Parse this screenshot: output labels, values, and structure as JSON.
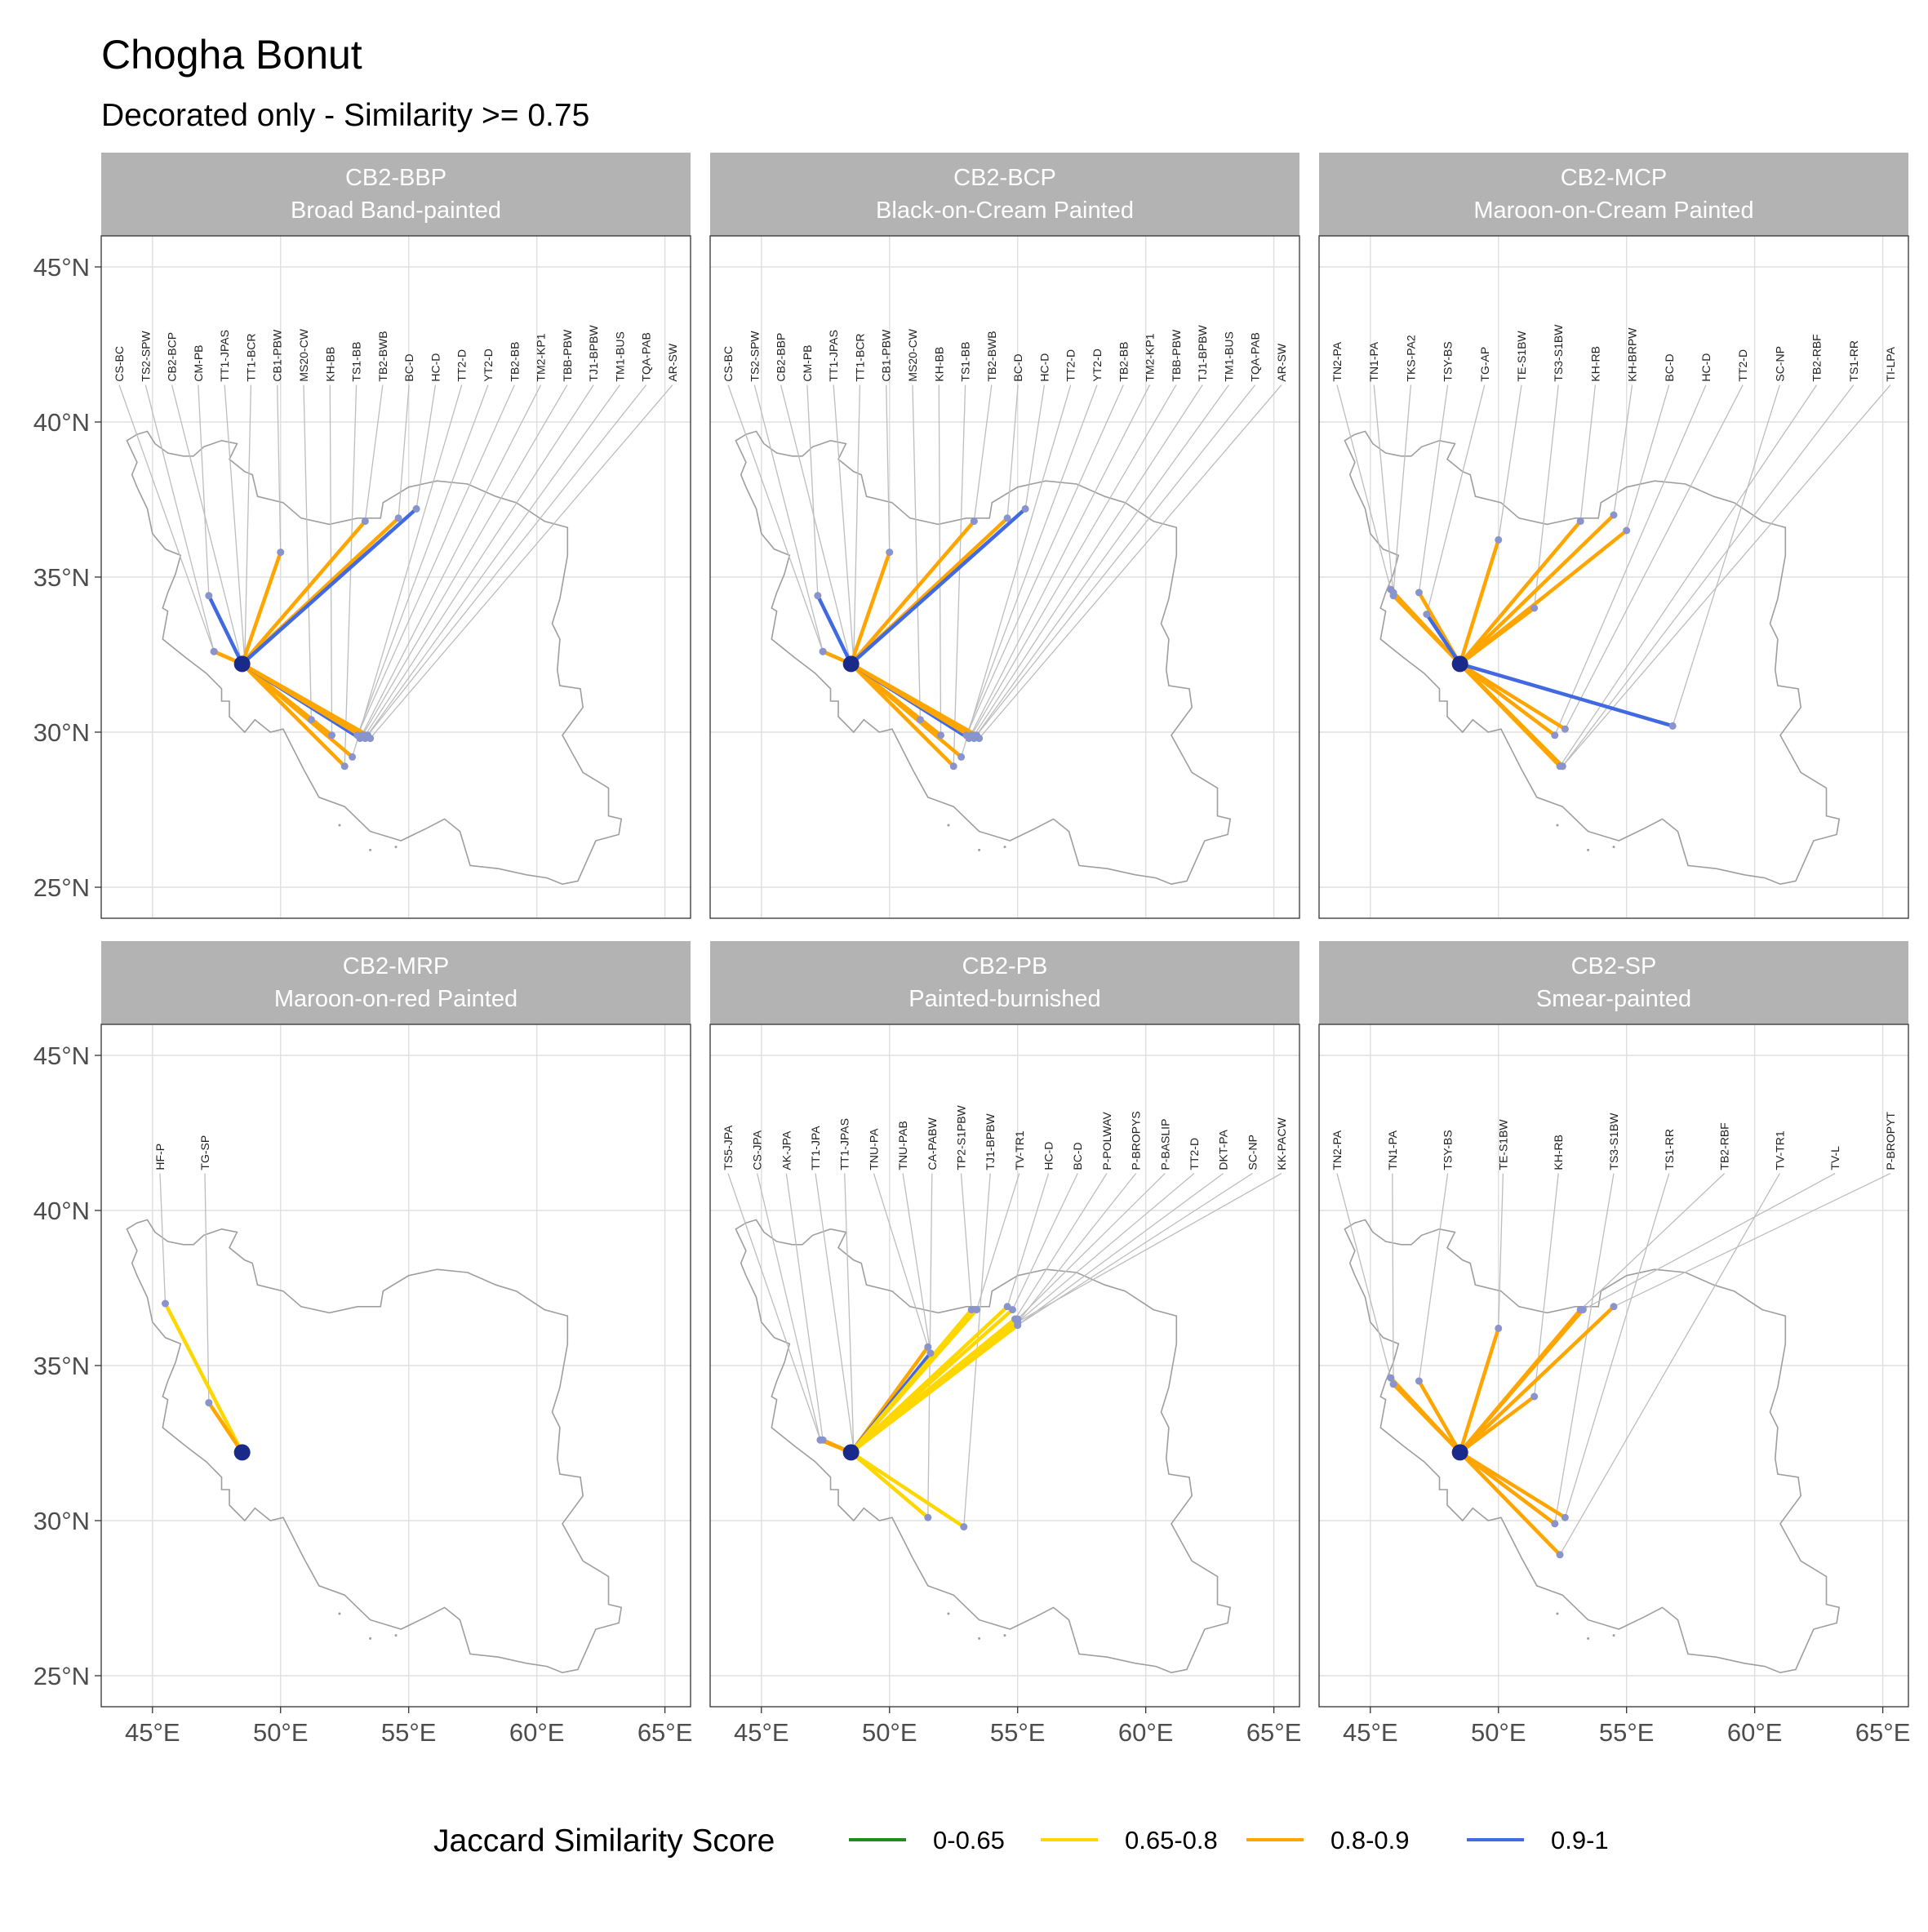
{
  "title": "Chogha Bonut",
  "subtitle": "Decorated only - Similarity >= 0.75",
  "legend": {
    "title": "Jaccard Similarity Score",
    "items": [
      {
        "label": "0-0.65",
        "color": "#228B22"
      },
      {
        "label": "0.65-0.8",
        "color": "#FFD700"
      },
      {
        "label": "0.8-0.9",
        "color": "#FFA500"
      },
      {
        "label": "0.9-1",
        "color": "#4169E1"
      }
    ]
  },
  "chart_data": {
    "type": "map",
    "panel_layout": "2 rows x 3 columns",
    "xlim": [
      43,
      66
    ],
    "ylim": [
      24,
      46
    ],
    "x_ticks": [
      45,
      50,
      55,
      60,
      65
    ],
    "x_tick_labels": [
      "45°E",
      "50°E",
      "55°E",
      "60°E",
      "65°E"
    ],
    "y_ticks": [
      25,
      30,
      35,
      40,
      45
    ],
    "y_tick_labels": [
      "25°N",
      "30°N",
      "35°N",
      "40°N",
      "45°N"
    ],
    "grid": true,
    "legend_position": "bottom",
    "origin": {
      "lon": 48.5,
      "lat": 32.2
    },
    "colors": {
      "panel_strip": "#B3B3B3",
      "strip_text": "#FFFFFF",
      "grid": "#E0E0E0",
      "border": "#333333",
      "outline": "#9E9E9E",
      "leader": "#BDBDBD",
      "site_point": "#8A94CC",
      "origin_point": "#1A2A8A",
      "axis_text": "#4D4D4D"
    },
    "panels": [
      {
        "strip": [
          "CB2-BBP",
          "Broad Band-painted"
        ],
        "sites": [
          {
            "label": "CS-BC",
            "lon": 47.4,
            "lat": 32.6,
            "band": "0.8-0.9"
          },
          {
            "label": "TS2-SPW",
            "lon": 47.4,
            "lat": 32.6,
            "band": "0.8-0.9"
          },
          {
            "label": "CB2-BCP",
            "lon": 48.5,
            "lat": 32.2,
            "band": "0.8-0.9"
          },
          {
            "label": "CM-PB",
            "lon": 47.2,
            "lat": 34.4,
            "band": "0.9-1"
          },
          {
            "label": "TT1-JPAS",
            "lon": 48.6,
            "lat": 32.3,
            "band": "0.8-0.9"
          },
          {
            "label": "TT1-BCR",
            "lon": 48.6,
            "lat": 32.3,
            "band": "0.8-0.9"
          },
          {
            "label": "CB1-PBW",
            "lon": 50.0,
            "lat": 35.8,
            "band": "0.8-0.9"
          },
          {
            "label": "MS20-CW",
            "lon": 51.2,
            "lat": 30.4,
            "band": "0.8-0.9"
          },
          {
            "label": "KH-BB",
            "lon": 52.0,
            "lat": 29.9,
            "band": "0.8-0.9"
          },
          {
            "label": "TS1-BB",
            "lon": 52.5,
            "lat": 28.9,
            "band": "0.8-0.9"
          },
          {
            "label": "TB2-BWB",
            "lon": 53.3,
            "lat": 36.8,
            "band": "0.8-0.9"
          },
          {
            "label": "BC-D",
            "lon": 54.6,
            "lat": 36.9,
            "band": "0.8-0.9"
          },
          {
            "label": "HC-D",
            "lon": 55.3,
            "lat": 37.2,
            "band": "0.9-1"
          },
          {
            "label": "TT2-D",
            "lon": 52.8,
            "lat": 29.2,
            "band": "0.8-0.9"
          },
          {
            "label": "YT2-D",
            "lon": 53.0,
            "lat": 29.9,
            "band": "0.9-1"
          },
          {
            "label": "TB2-BB",
            "lon": 53.0,
            "lat": 29.9,
            "band": "0.8-0.9"
          },
          {
            "label": "TM2-KP1",
            "lon": 53.1,
            "lat": 29.8,
            "band": "0.9-1"
          },
          {
            "label": "TBB-PBW",
            "lon": 53.2,
            "lat": 29.9,
            "band": "0.8-0.9"
          },
          {
            "label": "TJ1-BPBW",
            "lon": 53.3,
            "lat": 29.9,
            "band": "0.8-0.9"
          },
          {
            "label": "TM1-BUS",
            "lon": 53.3,
            "lat": 29.8,
            "band": "0.8-0.9"
          },
          {
            "label": "TQA-PAB",
            "lon": 53.4,
            "lat": 29.9,
            "band": "0.8-0.9"
          },
          {
            "label": "AR-SW",
            "lon": 53.5,
            "lat": 29.8,
            "band": "0.8-0.9"
          }
        ]
      },
      {
        "strip": [
          "CB2-BCP",
          "Black-on-Cream Painted"
        ],
        "sites": [
          {
            "label": "CS-BC",
            "lon": 47.4,
            "lat": 32.6,
            "band": "0.8-0.9"
          },
          {
            "label": "TS2-SPW",
            "lon": 47.4,
            "lat": 32.6,
            "band": "0.8-0.9"
          },
          {
            "label": "CB2-BBP",
            "lon": 48.5,
            "lat": 32.2,
            "band": "0.8-0.9"
          },
          {
            "label": "CM-PB",
            "lon": 47.2,
            "lat": 34.4,
            "band": "0.9-1"
          },
          {
            "label": "TT1-JPAS",
            "lon": 48.6,
            "lat": 32.3,
            "band": "0.8-0.9"
          },
          {
            "label": "TT1-BCR",
            "lon": 48.6,
            "lat": 32.3,
            "band": "0.8-0.9"
          },
          {
            "label": "CB1-PBW",
            "lon": 50.0,
            "lat": 35.8,
            "band": "0.8-0.9"
          },
          {
            "label": "MS20-CW",
            "lon": 51.2,
            "lat": 30.4,
            "band": "0.8-0.9"
          },
          {
            "label": "KH-BB",
            "lon": 52.0,
            "lat": 29.9,
            "band": "0.8-0.9"
          },
          {
            "label": "TS1-BB",
            "lon": 52.5,
            "lat": 28.9,
            "band": "0.8-0.9"
          },
          {
            "label": "TB2-BWB",
            "lon": 53.3,
            "lat": 36.8,
            "band": "0.8-0.9"
          },
          {
            "label": "BC-D",
            "lon": 54.6,
            "lat": 36.9,
            "band": "0.8-0.9"
          },
          {
            "label": "HC-D",
            "lon": 55.3,
            "lat": 37.2,
            "band": "0.9-1"
          },
          {
            "label": "TT2-D",
            "lon": 52.8,
            "lat": 29.2,
            "band": "0.8-0.9"
          },
          {
            "label": "YT2-D",
            "lon": 53.0,
            "lat": 29.9,
            "band": "0.9-1"
          },
          {
            "label": "TB2-BB",
            "lon": 53.0,
            "lat": 29.9,
            "band": "0.8-0.9"
          },
          {
            "label": "TM2-KP1",
            "lon": 53.1,
            "lat": 29.8,
            "band": "0.9-1"
          },
          {
            "label": "TBB-PBW",
            "lon": 53.2,
            "lat": 29.9,
            "band": "0.8-0.9"
          },
          {
            "label": "TJ1-BPBW",
            "lon": 53.3,
            "lat": 29.9,
            "band": "0.8-0.9"
          },
          {
            "label": "TM1-BUS",
            "lon": 53.3,
            "lat": 29.8,
            "band": "0.8-0.9"
          },
          {
            "label": "TQA-PAB",
            "lon": 53.4,
            "lat": 29.9,
            "band": "0.8-0.9"
          },
          {
            "label": "AR-SW",
            "lon": 53.5,
            "lat": 29.8,
            "band": "0.8-0.9"
          }
        ]
      },
      {
        "strip": [
          "CB2-MCP",
          "Maroon-on-Cream Painted"
        ],
        "sites": [
          {
            "label": "TN2-PA",
            "lon": 45.8,
            "lat": 34.6,
            "band": "0.8-0.9"
          },
          {
            "label": "TN1-PA",
            "lon": 45.9,
            "lat": 34.4,
            "band": "0.8-0.9"
          },
          {
            "label": "TKS-PA2",
            "lon": 45.9,
            "lat": 34.5,
            "band": "0.8-0.9"
          },
          {
            "label": "TSY-BS",
            "lon": 46.9,
            "lat": 34.5,
            "band": "0.8-0.9"
          },
          {
            "label": "TG-AP",
            "lon": 47.2,
            "lat": 33.8,
            "band": "0.9-1"
          },
          {
            "label": "TE-S1BW",
            "lon": 50.0,
            "lat": 36.2,
            "band": "0.8-0.9"
          },
          {
            "label": "TS3-S1BW",
            "lon": 51.4,
            "lat": 34.0,
            "band": "0.8-0.9"
          },
          {
            "label": "KH-RB",
            "lon": 53.2,
            "lat": 36.8,
            "band": "0.8-0.9"
          },
          {
            "label": "KH-BRPW",
            "lon": 54.5,
            "lat": 37.0,
            "band": "0.8-0.9"
          },
          {
            "label": "BC-D",
            "lon": 55.0,
            "lat": 36.5,
            "band": "0.8-0.9"
          },
          {
            "label": "HC-D",
            "lon": 52.2,
            "lat": 29.9,
            "band": "0.8-0.9"
          },
          {
            "label": "TT2-D",
            "lon": 52.6,
            "lat": 30.1,
            "band": "0.8-0.9"
          },
          {
            "label": "SC-NP",
            "lon": 56.8,
            "lat": 30.2,
            "band": "0.9-1"
          },
          {
            "label": "TB2-RBF",
            "lon": 52.4,
            "lat": 28.9,
            "band": "0.8-0.9"
          },
          {
            "label": "TS1-RR",
            "lon": 52.5,
            "lat": 28.9,
            "band": "0.8-0.9"
          },
          {
            "label": "TI-LPA",
            "lon": 52.5,
            "lat": 28.9,
            "band": "0.8-0.9"
          }
        ]
      },
      {
        "strip": [
          "CB2-MRP",
          "Maroon-on-red Painted"
        ],
        "sites": [
          {
            "label": "HF-P",
            "lon": 45.5,
            "lat": 37.0,
            "band": "0.65-0.8"
          },
          {
            "label": "TG-SP",
            "lon": 47.2,
            "lat": 33.8,
            "band": "0.8-0.9"
          }
        ]
      },
      {
        "strip": [
          "CB2-PB",
          "Painted-burnished"
        ],
        "sites": [
          {
            "label": "TS5-JPA",
            "lon": 47.3,
            "lat": 32.6,
            "band": "0.8-0.9"
          },
          {
            "label": "CS-JPA",
            "lon": 47.3,
            "lat": 32.6,
            "band": "0.8-0.9"
          },
          {
            "label": "AK-JPA",
            "lon": 47.4,
            "lat": 32.6,
            "band": "0.8-0.9"
          },
          {
            "label": "TT1-JPA",
            "lon": 48.6,
            "lat": 32.3,
            "band": "0.8-0.9"
          },
          {
            "label": "TT1-JPAS",
            "lon": 48.6,
            "lat": 32.3,
            "band": "0.8-0.9"
          },
          {
            "label": "TNU-PA",
            "lon": 51.5,
            "lat": 35.6,
            "band": "0.8-0.9"
          },
          {
            "label": "TNU-PAB",
            "lon": 51.6,
            "lat": 35.4,
            "band": "0.9-1"
          },
          {
            "label": "CA-PABW",
            "lon": 51.5,
            "lat": 30.1,
            "band": "0.65-0.8"
          },
          {
            "label": "TP2-S1PBW",
            "lon": 53.2,
            "lat": 36.8,
            "band": "0.65-0.8"
          },
          {
            "label": "TJ1-BPBW",
            "lon": 52.9,
            "lat": 29.8,
            "band": "0.65-0.8"
          },
          {
            "label": "TV-TR1",
            "lon": 53.4,
            "lat": 36.8,
            "band": "0.65-0.8"
          },
          {
            "label": "HC-D",
            "lon": 54.6,
            "lat": 36.9,
            "band": "0.65-0.8"
          },
          {
            "label": "BC-D",
            "lon": 54.8,
            "lat": 36.8,
            "band": "0.65-0.8"
          },
          {
            "label": "P-POLWAV",
            "lon": 54.9,
            "lat": 36.5,
            "band": "0.65-0.8"
          },
          {
            "label": "P-BROPYS",
            "lon": 55.0,
            "lat": 36.4,
            "band": "0.65-0.8"
          },
          {
            "label": "P-BASLIP",
            "lon": 55.0,
            "lat": 36.5,
            "band": "0.65-0.8"
          },
          {
            "label": "TT2-D",
            "lon": 55.0,
            "lat": 36.4,
            "band": "0.65-0.8"
          },
          {
            "label": "DKT-PA",
            "lon": 55.0,
            "lat": 36.3,
            "band": "0.65-0.8"
          },
          {
            "label": "SC-NP",
            "lon": 55.0,
            "lat": 36.3,
            "band": "0.65-0.8"
          },
          {
            "label": "KK-PACW",
            "lon": 55.0,
            "lat": 36.4,
            "band": "0.65-0.8"
          }
        ]
      },
      {
        "strip": [
          "CB2-SP",
          "Smear-painted"
        ],
        "sites": [
          {
            "label": "TN2-PA",
            "lon": 45.8,
            "lat": 34.6,
            "band": "0.8-0.9"
          },
          {
            "label": "TN1-PA",
            "lon": 45.9,
            "lat": 34.4,
            "band": "0.8-0.9"
          },
          {
            "label": "TSY-BS",
            "lon": 46.9,
            "lat": 34.5,
            "band": "0.8-0.9"
          },
          {
            "label": "TE-S1BW",
            "lon": 50.0,
            "lat": 36.2,
            "band": "0.8-0.9"
          },
          {
            "label": "KH-RB",
            "lon": 51.4,
            "lat": 34.0,
            "band": "0.8-0.9"
          },
          {
            "label": "TS3-S1BW",
            "lon": 52.2,
            "lat": 29.9,
            "band": "0.8-0.9"
          },
          {
            "label": "TS1-RR",
            "lon": 52.6,
            "lat": 30.1,
            "band": "0.8-0.9"
          },
          {
            "label": "TB2-RBF",
            "lon": 53.2,
            "lat": 36.8,
            "band": "0.8-0.9"
          },
          {
            "label": "TV-TR1",
            "lon": 52.4,
            "lat": 28.9,
            "band": "0.8-0.9"
          },
          {
            "label": "TV-L",
            "lon": 53.3,
            "lat": 36.8,
            "band": "0.8-0.9"
          },
          {
            "label": "P-BROPYT",
            "lon": 54.5,
            "lat": 36.9,
            "band": "0.8-0.9"
          }
        ]
      }
    ]
  }
}
